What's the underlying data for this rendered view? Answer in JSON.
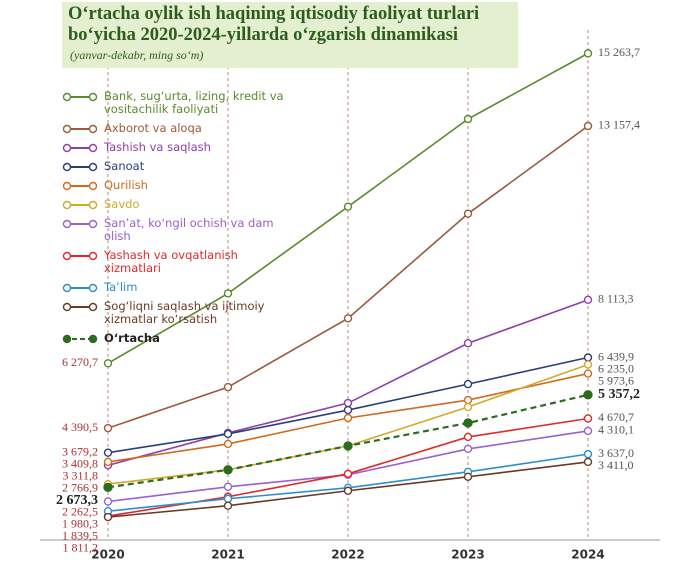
{
  "chart_data": {
    "type": "line",
    "title": "O‘rtacha oylik ish haqining iqtisodiy faoliyat turlari bo‘yicha 2020-2024-yillarda o‘zgarish dinamikasi",
    "subtitle": "(yanvar-dekabr, ming so‘m)",
    "categories": [
      "2020",
      "2021",
      "2022",
      "2023",
      "2024"
    ],
    "ylim": [
      1000,
      16000
    ],
    "series": [
      {
        "name": "Bank, sug‘urta, lizing, kredit va vositachilik faoliyati",
        "color": "#5a8a2e",
        "values": [
          6270.7,
          8300,
          10816,
          13360,
          15263.7
        ],
        "value_labels": [
          "6 270,7",
          null,
          null,
          null,
          "15 263,7"
        ]
      },
      {
        "name": "Axborot va aloqa",
        "color": "#9c5a3c",
        "values": [
          4390.5,
          5581,
          7577,
          10613,
          13157.4
        ],
        "value_labels": [
          "4 390,5",
          null,
          null,
          null,
          "13 157,4"
        ]
      },
      {
        "name": "Tashish va saqlash",
        "color": "#8e3fa8",
        "values": [
          3311.8,
          4251,
          5119,
          6854,
          8113.3
        ],
        "value_labels": [
          "3 311,8",
          null,
          null,
          null,
          "8 113,3"
        ]
      },
      {
        "name": "Sanoat",
        "color": "#2a3f7a",
        "values": [
          3679.2,
          4222,
          4916,
          5668,
          6439.9
        ],
        "value_labels": [
          "3 679,2",
          null,
          null,
          null,
          "6 439,9"
        ]
      },
      {
        "name": "Qurilish",
        "color": "#d2691e",
        "values": [
          3409.8,
          3933,
          4685,
          5205,
          5973.6
        ],
        "value_labels": [
          "3 409,8",
          null,
          null,
          null,
          "5 973,6"
        ]
      },
      {
        "name": "Savdo",
        "color": "#d4a82a",
        "values": [
          2766.9,
          3181,
          3875,
          5003,
          6235.0
        ],
        "value_labels": [
          "2 766,9",
          null,
          null,
          null,
          "6 235,0"
        ]
      },
      {
        "name": "San’at, ko‘ngil ochish va dam olish",
        "color": "#9a5fd0",
        "values": [
          2262.5,
          2689,
          3036,
          3788,
          4310.1
        ],
        "value_labels": [
          "2 262,5",
          null,
          null,
          null,
          "4 310,1"
        ]
      },
      {
        "name": "Yashash va ovqatlanish xizmatlari",
        "color": "#e02a2a",
        "values": [
          1839.5,
          2400,
          3065,
          4135,
          4670.7
        ],
        "value_labels": [
          "1 839,5",
          null,
          null,
          null,
          "4 670,7"
        ]
      },
      {
        "name": "Ta’lim",
        "color": "#2a8fd0",
        "values": [
          1980.3,
          2342,
          2660,
          3123,
          3637.0
        ],
        "value_labels": [
          "1 980,3",
          null,
          null,
          null,
          "3 637,0"
        ]
      },
      {
        "name": "Sog‘liqni saqlash va ijtimoiy xizmatlar ko‘rsatish",
        "color": "#6b3a26",
        "values": [
          1811.2,
          2140,
          2574,
          2979,
          3411.0
        ],
        "value_labels": [
          "1 811,2",
          null,
          null,
          null,
          "3 411,0"
        ]
      },
      {
        "name": "O‘rtacha",
        "color": "#2d6b1e",
        "dashed": true,
        "bold": true,
        "values": [
          2673.3,
          3181,
          3875,
          4540,
          5357.2
        ],
        "value_labels": [
          "2 673,3",
          null,
          null,
          null,
          "5 357,2"
        ]
      }
    ]
  }
}
